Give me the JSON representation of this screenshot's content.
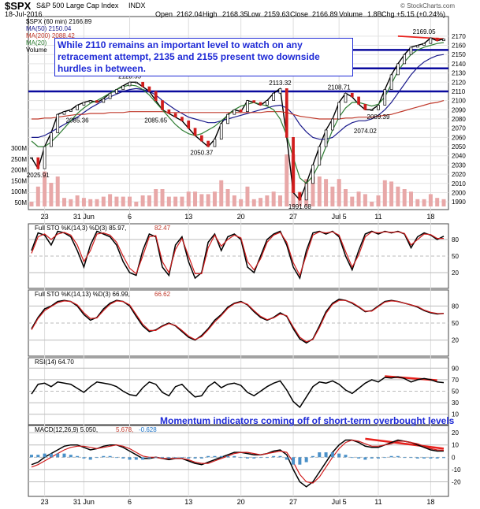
{
  "header": {
    "symbol": "$SPX",
    "name": "S&P 500 Large Cap Index",
    "exchange": "INDX",
    "date": "18-Jul-2016",
    "open_label": "Open",
    "open": "2162.04",
    "high_label": "High",
    "high": "2168.35",
    "low_label": "Low",
    "low": "2159.63",
    "close_label": "Close",
    "close": "2166.89",
    "volume_label": "Volume",
    "volume": "1.8B",
    "change": "Chg +5.15 (+0.24%)",
    "watermark": "© StockCharts.com"
  },
  "main_legend": {
    "price": "$SPX (60 min) 2166.89",
    "ma50": "MA(50) 2150.04",
    "ma200": "MA(200) 2088.42",
    "ma20": "MA(20)",
    "volume": "Volume"
  },
  "annotations": {
    "top_note": "While 2110 remains an important level to watch on any retracement attempt, 2135 and 2155 present two downside hurdles in between.",
    "bottom_note": "Momentum indicators coming off of short-term overbought levels"
  },
  "panels": {
    "sto1": {
      "label": "Full STO %K(14,3) %D(3) 85.97,",
      "value2": "82.47"
    },
    "sto2": {
      "label": "Full STO %K(14,13) %D(3) 66.99,",
      "value2": "66.62"
    },
    "rsi": {
      "label": "RSI(14) 64.70"
    },
    "macd": {
      "label": "MACD(12,26,9) 5.050,",
      "value2": "5.678,",
      "value3": "-0.628"
    }
  },
  "colors": {
    "price": "#000000",
    "ma50": "#1a1a8c",
    "ma200": "#c0392b",
    "ma20": "#2e7d32",
    "up_candle": "#000000",
    "down_candle": "#d01c1c",
    "volume": "#e8a8a8",
    "hline": "#0a0a9e",
    "note": "#1e2ad6",
    "trend": "#e8211c"
  },
  "chart_data": [
    {
      "type": "line",
      "title": "$SPX S&P 500 Large Cap Index INDX (60 min)",
      "x_tick_labels": [
        "23",
        "31 Jun",
        "6",
        "13",
        "20",
        "27",
        "Jul 5",
        "11",
        "18"
      ],
      "y_tick_labels": [
        2170,
        2160,
        2150,
        2140,
        2130,
        2120,
        2110,
        2100,
        2090,
        2080,
        2070,
        2060,
        2050,
        2040,
        2030,
        2020,
        2010,
        2000,
        1990
      ],
      "ylim": [
        1985,
        2175
      ],
      "volume_tick_labels": [
        "300M",
        "250M",
        "200M",
        "150M",
        "100M",
        "50M"
      ],
      "horizontal_levels": [
        2110,
        2135,
        2155
      ],
      "series": [
        {
          "name": "$SPX (60 min)",
          "values": [
            2038,
            2026,
            2050,
            2065,
            2085,
            2088,
            2090,
            2095,
            2098,
            2100,
            2098,
            2102,
            2108,
            2112,
            2116,
            2120,
            2120,
            2115,
            2110,
            2100,
            2090,
            2086,
            2082,
            2078,
            2070,
            2062,
            2056,
            2050,
            2058,
            2075,
            2085,
            2090,
            2088,
            2100,
            2098,
            2095,
            2100,
            2108,
            2113,
            2060,
            2000,
            1992,
            2010,
            2030,
            2050,
            2068,
            2080,
            2098,
            2108,
            2104,
            2096,
            2090,
            2090,
            2095,
            2112,
            2128,
            2140,
            2150,
            2158,
            2160,
            2162,
            2168,
            2165,
            2167
          ]
        },
        {
          "name": "MA(50)",
          "values": [
            2060,
            2060,
            2062,
            2066,
            2070,
            2074,
            2078,
            2082,
            2087,
            2092,
            2096,
            2100,
            2104,
            2107,
            2110,
            2112,
            2113,
            2112,
            2110,
            2106,
            2100,
            2095,
            2090,
            2086,
            2082,
            2080,
            2078,
            2076,
            2076,
            2078,
            2080,
            2082,
            2084,
            2086,
            2088,
            2090,
            2092,
            2094,
            2095,
            2092,
            2085,
            2074,
            2066,
            2060,
            2058,
            2058,
            2060,
            2066,
            2072,
            2076,
            2078,
            2078,
            2080,
            2084,
            2090,
            2098,
            2108,
            2118,
            2128,
            2136,
            2142,
            2146,
            2149,
            2150
          ]
        },
        {
          "name": "MA(200)",
          "values": [
            2080,
            2080,
            2081,
            2081,
            2082,
            2083,
            2084,
            2085,
            2085,
            2086,
            2086,
            2086,
            2087,
            2087,
            2087,
            2088,
            2088,
            2088,
            2088,
            2088,
            2088,
            2087,
            2087,
            2087,
            2087,
            2087,
            2087,
            2087,
            2087,
            2087,
            2087,
            2087,
            2087,
            2087,
            2087,
            2087,
            2088,
            2088,
            2088,
            2087,
            2085,
            2083,
            2082,
            2081,
            2080,
            2080,
            2080,
            2080,
            2081,
            2081,
            2082,
            2082,
            2082,
            2083,
            2084,
            2085,
            2087,
            2089,
            2091,
            2093,
            2095,
            2097,
            2098,
            2100
          ]
        },
        {
          "name": "MA(20)",
          "values": [
            2056,
            2050,
            2050,
            2055,
            2062,
            2070,
            2078,
            2086,
            2092,
            2097,
            2100,
            2104,
            2108,
            2112,
            2115,
            2117,
            2116,
            2112,
            2106,
            2098,
            2090,
            2082,
            2074,
            2068,
            2064,
            2062,
            2064,
            2068,
            2072,
            2078,
            2084,
            2090,
            2094,
            2096,
            2098,
            2096,
            2094,
            2090,
            2080,
            2062,
            2038,
            2016,
            2010,
            2018,
            2032,
            2050,
            2068,
            2082,
            2092,
            2098,
            2098,
            2096,
            2094,
            2096,
            2104,
            2118,
            2132,
            2142,
            2150,
            2155,
            2158,
            2160,
            2162,
            2163
          ]
        }
      ],
      "data_labels": [
        {
          "x": "May 20",
          "y": 2025.91
        },
        {
          "x": "May 27",
          "y": 2085.36
        },
        {
          "x": "Jun 8",
          "y": 2120.55
        },
        {
          "x": "Jun 10",
          "y": 2085.65
        },
        {
          "x": "Jun 16",
          "y": 2050.37
        },
        {
          "x": "Jun 23",
          "y": 2113.32
        },
        {
          "x": "Jun 27",
          "y": 1991.68
        },
        {
          "x": "Jul 1",
          "y": 2108.71
        },
        {
          "x": "Jul 6",
          "y": 2074.02
        },
        {
          "x": "Jul 8",
          "y": 2089.39
        },
        {
          "x": "Jul 15",
          "y": 2169.05
        }
      ]
    },
    {
      "type": "line",
      "title": "Full STO %K(14,3) %D(3)",
      "y_tick_labels": [
        80,
        50,
        20
      ],
      "ylim": [
        0,
        100
      ],
      "series": [
        {
          "name": "%K(14,3)",
          "values": [
            60,
            92,
            88,
            70,
            95,
            92,
            85,
            60,
            30,
            70,
            95,
            90,
            85,
            70,
            40,
            20,
            15,
            60,
            90,
            85,
            30,
            15,
            70,
            85,
            40,
            10,
            20,
            75,
            90,
            60,
            85,
            90,
            80,
            30,
            20,
            50,
            80,
            90,
            95,
            70,
            30,
            10,
            60,
            92,
            95,
            90,
            95,
            85,
            50,
            25,
            60,
            90,
            95,
            90,
            95,
            92,
            95,
            90,
            65,
            85,
            92,
            88,
            80,
            86
          ]
        },
        {
          "name": "%D(3)",
          "values": [
            55,
            85,
            90,
            80,
            90,
            93,
            88,
            70,
            40,
            60,
            90,
            92,
            88,
            75,
            50,
            28,
            18,
            50,
            85,
            87,
            40,
            20,
            62,
            82,
            50,
            18,
            18,
            65,
            88,
            68,
            80,
            88,
            83,
            40,
            25,
            45,
            75,
            88,
            93,
            75,
            38,
            15,
            52,
            88,
            94,
            92,
            94,
            88,
            58,
            30,
            52,
            85,
            94,
            92,
            94,
            93,
            94,
            91,
            70,
            80,
            90,
            89,
            82,
            82
          ]
        }
      ]
    },
    {
      "type": "line",
      "title": "Full STO %K(14,13) %D(3)",
      "y_tick_labels": [
        80,
        50,
        20
      ],
      "ylim": [
        0,
        100
      ],
      "series": [
        {
          "name": "%K(14,13)",
          "values": [
            40,
            60,
            75,
            80,
            88,
            90,
            88,
            80,
            65,
            55,
            60,
            75,
            85,
            90,
            88,
            80,
            62,
            45,
            35,
            38,
            45,
            50,
            45,
            35,
            25,
            20,
            28,
            40,
            55,
            65,
            78,
            85,
            88,
            82,
            70,
            60,
            55,
            60,
            68,
            62,
            40,
            22,
            15,
            22,
            45,
            70,
            85,
            92,
            90,
            85,
            78,
            70,
            72,
            80,
            88,
            90,
            88,
            85,
            82,
            78,
            72,
            68,
            66,
            67
          ]
        },
        {
          "name": "%D(3)",
          "values": [
            38,
            58,
            72,
            79,
            86,
            89,
            88,
            82,
            68,
            58,
            59,
            72,
            83,
            89,
            88,
            82,
            65,
            48,
            37,
            37,
            44,
            49,
            46,
            37,
            27,
            21,
            26,
            38,
            52,
            63,
            76,
            84,
            87,
            83,
            72,
            62,
            56,
            59,
            66,
            63,
            43,
            25,
            17,
            21,
            42,
            67,
            83,
            90,
            90,
            86,
            79,
            71,
            71,
            79,
            87,
            89,
            88,
            85,
            82,
            79,
            73,
            69,
            67,
            66.6
          ]
        }
      ]
    },
    {
      "type": "line",
      "title": "RSI(14)",
      "y_tick_labels": [
        90,
        70,
        50,
        30,
        10
      ],
      "ylim": [
        0,
        100
      ],
      "series": [
        {
          "name": "RSI(14)",
          "values": [
            45,
            62,
            64,
            58,
            66,
            64,
            62,
            55,
            48,
            58,
            66,
            64,
            62,
            58,
            50,
            44,
            42,
            56,
            66,
            62,
            48,
            42,
            58,
            62,
            50,
            40,
            42,
            58,
            66,
            56,
            62,
            64,
            60,
            48,
            42,
            50,
            58,
            64,
            68,
            52,
            32,
            22,
            40,
            58,
            66,
            64,
            68,
            62,
            52,
            46,
            55,
            64,
            70,
            66,
            74,
            73,
            75,
            72,
            66,
            70,
            72,
            70,
            66,
            65
          ]
        }
      ]
    },
    {
      "type": "line",
      "title": "MACD(12,26,9)",
      "y_tick_labels": [
        20,
        10,
        0,
        -10,
        -20
      ],
      "ylim": [
        -28,
        22
      ],
      "series": [
        {
          "name": "MACD",
          "values": [
            -6,
            -4,
            0,
            3,
            6,
            9,
            10,
            10,
            8,
            6,
            7,
            9,
            10,
            10,
            8,
            5,
            2,
            -1,
            -1,
            0,
            -1,
            -2,
            -1,
            -1,
            -3,
            -5,
            -6,
            -4,
            -2,
            0,
            2,
            4,
            4,
            3,
            2,
            2,
            3,
            5,
            6,
            2,
            -10,
            -20,
            -24,
            -20,
            -12,
            -4,
            4,
            10,
            14,
            14,
            12,
            9,
            8,
            8,
            10,
            12,
            14,
            13,
            12,
            10,
            8,
            6,
            5,
            5.05
          ]
        },
        {
          "name": "Signal",
          "values": [
            -8,
            -6,
            -3,
            0,
            3,
            6,
            8,
            9,
            9,
            8,
            7,
            8,
            9,
            10,
            9,
            7,
            4,
            1,
            0,
            0,
            -1,
            -1,
            -1,
            -1,
            -2,
            -4,
            -5,
            -5,
            -3,
            -1,
            1,
            3,
            4,
            4,
            3,
            2,
            3,
            4,
            5,
            4,
            -4,
            -14,
            -20,
            -21,
            -16,
            -8,
            0,
            7,
            12,
            14,
            13,
            11,
            9,
            9,
            10,
            11,
            13,
            13,
            12,
            11,
            9,
            7,
            6,
            5.68
          ]
        },
        {
          "name": "Histogram",
          "values": [
            2,
            2,
            3,
            3,
            3,
            3,
            2,
            1,
            -1,
            -2,
            0,
            1,
            1,
            0,
            -1,
            -2,
            -2,
            -2,
            -1,
            0,
            0,
            -1,
            0,
            0,
            -1,
            -1,
            -1,
            1,
            1,
            1,
            1,
            1,
            0,
            -1,
            -1,
            0,
            0,
            1,
            1,
            -2,
            -6,
            -6,
            -4,
            1,
            4,
            4,
            4,
            3,
            2,
            0,
            -1,
            -2,
            -1,
            -1,
            0,
            1,
            1,
            0,
            0,
            -1,
            -1,
            -1,
            -1,
            -0.63
          ]
        }
      ]
    }
  ]
}
